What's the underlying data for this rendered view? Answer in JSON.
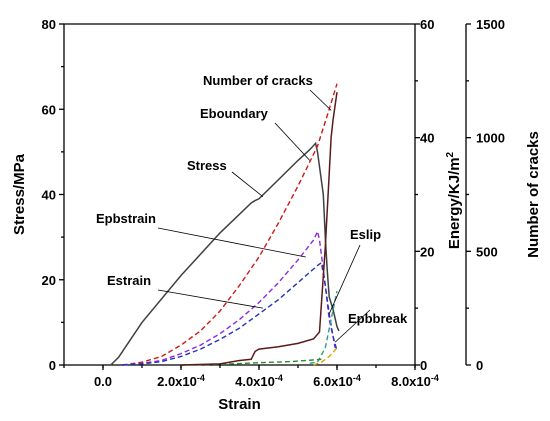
{
  "chart_data": {
    "type": "line",
    "axes": {
      "x": {
        "title": "Strain",
        "range": [
          -0.0001,
          0.0008
        ],
        "ticks": [
          0,
          0.0002,
          0.0004,
          0.0006,
          0.0008
        ],
        "tick_labels": [
          "0.0",
          "2.0x10-4",
          "4.0x10-4",
          "6.0x10-4",
          "8.0x10-4"
        ]
      },
      "y_stress": {
        "title": "Stress/MPa",
        "range": [
          0,
          80
        ],
        "ticks": [
          0,
          20,
          40,
          60,
          80
        ],
        "tick_labels": [
          "0",
          "20",
          "40",
          "60",
          "80"
        ]
      },
      "y_energy": {
        "title": "Energy/KJ/m2",
        "range": [
          0,
          60
        ],
        "ticks": [
          0,
          20,
          40,
          60
        ],
        "tick_labels": [
          "0",
          "20",
          "40",
          "60"
        ]
      },
      "y_cracks": {
        "title": "Number of cracks",
        "range": [
          0,
          1500
        ],
        "ticks": [
          0,
          500,
          1000,
          1500
        ],
        "tick_labels": [
          "0",
          "500",
          "1000",
          "1500"
        ]
      }
    },
    "series": [
      {
        "name": "Stress",
        "axis": "y_stress",
        "color": "#404040",
        "dash": false,
        "points": [
          [
            2e-05,
            0
          ],
          [
            4e-05,
            1.8
          ],
          [
            0.0001,
            10
          ],
          [
            0.0002,
            21
          ],
          [
            0.0003,
            31
          ],
          [
            0.00038,
            38
          ],
          [
            0.00039,
            38.6
          ],
          [
            0.0004,
            39
          ],
          [
            0.00045,
            43.5
          ],
          [
            0.0005,
            48
          ],
          [
            0.00053,
            50.5
          ],
          [
            0.000545,
            52
          ],
          [
            0.00055,
            50
          ],
          [
            0.000565,
            40
          ],
          [
            0.00057,
            30
          ],
          [
            0.000575,
            22
          ],
          [
            0.00058,
            16
          ],
          [
            0.00059,
            13
          ],
          [
            0.0006,
            9
          ],
          [
            0.000605,
            8
          ]
        ]
      },
      {
        "name": "Eboundary",
        "axis": "y_energy",
        "color": "#d01818",
        "dash": true,
        "points": [
          [
            5e-05,
            0
          ],
          [
            0.0001,
            0.5
          ],
          [
            0.00015,
            1.5
          ],
          [
            0.0002,
            3.5
          ],
          [
            0.00025,
            6
          ],
          [
            0.0003,
            9.5
          ],
          [
            0.00035,
            14
          ],
          [
            0.0004,
            19
          ],
          [
            0.00045,
            25
          ],
          [
            0.0005,
            31.5
          ],
          [
            0.00055,
            38.5
          ],
          [
            0.00058,
            45
          ],
          [
            0.0006,
            49.5
          ]
        ]
      },
      {
        "name": "Epbstrain",
        "axis": "y_energy",
        "color": "#8a2be2",
        "dash": true,
        "points": [
          [
            5e-05,
            0
          ],
          [
            0.0001,
            0.3
          ],
          [
            0.00015,
            0.8
          ],
          [
            0.0002,
            2
          ],
          [
            0.00025,
            3.5
          ],
          [
            0.0003,
            5.5
          ],
          [
            0.00035,
            8
          ],
          [
            0.0004,
            11
          ],
          [
            0.00045,
            14.5
          ],
          [
            0.0005,
            18.5
          ],
          [
            0.00054,
            22
          ],
          [
            0.00055,
            23.5
          ],
          [
            0.000555,
            22
          ],
          [
            0.00057,
            14
          ],
          [
            0.00058,
            8
          ],
          [
            0.00059,
            5
          ],
          [
            0.000595,
            3
          ]
        ]
      },
      {
        "name": "Estrain",
        "axis": "y_energy",
        "color": "#2233bb",
        "dash": true,
        "points": [
          [
            5e-05,
            0
          ],
          [
            0.0001,
            0.2
          ],
          [
            0.00015,
            0.6
          ],
          [
            0.0002,
            1.5
          ],
          [
            0.00025,
            2.8
          ],
          [
            0.0003,
            4.5
          ],
          [
            0.00035,
            6.5
          ],
          [
            0.0004,
            9
          ],
          [
            0.00045,
            11.5
          ],
          [
            0.0005,
            14.5
          ],
          [
            0.00055,
            17.5
          ],
          [
            0.00056,
            18
          ],
          [
            0.00057,
            14
          ],
          [
            0.00058,
            9
          ],
          [
            0.00059,
            5
          ],
          [
            0.0006,
            2.5
          ]
        ]
      },
      {
        "name": "Eslip",
        "axis": "y_energy",
        "color": "#2a9d8f",
        "dash": true,
        "points": [
          [
            0.00053,
            0.3
          ],
          [
            0.00055,
            0.5
          ],
          [
            0.00057,
            3
          ],
          [
            0.000585,
            8
          ],
          [
            0.0006,
            13
          ]
        ]
      },
      {
        "name": "Epbbreak",
        "axis": "y_energy",
        "color": "#e0a000",
        "dash": true,
        "points": [
          [
            0.00054,
            0
          ],
          [
            0.00056,
            0.5
          ],
          [
            0.00058,
            1.5
          ],
          [
            0.0006,
            3
          ]
        ]
      },
      {
        "name": "green dashed",
        "axis": "y_energy",
        "color": "#2e8b2e",
        "dash": true,
        "points": [
          [
            0.0002,
            0
          ],
          [
            0.0003,
            0.1
          ],
          [
            0.0004,
            0.4
          ],
          [
            0.00048,
            0.6
          ],
          [
            0.00052,
            0.8
          ],
          [
            0.00056,
            1
          ]
        ]
      },
      {
        "name": "Number of cracks",
        "axis": "y_cracks",
        "color": "#5a1a1a",
        "dash": false,
        "points": [
          [
            0.0002,
            0
          ],
          [
            0.0003,
            5
          ],
          [
            0.00035,
            20
          ],
          [
            0.00038,
            25
          ],
          [
            0.00039,
            60
          ],
          [
            0.0004,
            70
          ],
          [
            0.00045,
            80
          ],
          [
            0.0005,
            95
          ],
          [
            0.00054,
            115
          ],
          [
            0.000555,
            145
          ],
          [
            0.00057,
            520
          ],
          [
            0.00058,
            840
          ],
          [
            0.000585,
            1000
          ],
          [
            0.00059,
            1080
          ],
          [
            0.0006,
            1200
          ]
        ]
      }
    ],
    "annotations": [
      {
        "text": "Number of cracks",
        "target": [
          0.000585,
          1120
        ],
        "axis": "y_cracks"
      },
      {
        "text": "Eboundary",
        "target": [
          0.00053,
          36
        ],
        "axis": "y_energy"
      },
      {
        "text": "Stress",
        "target": [
          0.00041,
          39.5
        ],
        "axis": "y_stress"
      },
      {
        "text": "Epbstrain",
        "target": [
          0.00052,
          19
        ],
        "axis": "y_energy"
      },
      {
        "text": "Eslip",
        "target": [
          0.00058,
          9
        ],
        "axis": "y_energy"
      },
      {
        "text": "Estrain",
        "target": [
          0.00041,
          10
        ],
        "axis": "y_energy"
      },
      {
        "text": "Epbbreak",
        "target": [
          0.000595,
          4
        ],
        "axis": "y_energy"
      }
    ],
    "grid": false
  }
}
